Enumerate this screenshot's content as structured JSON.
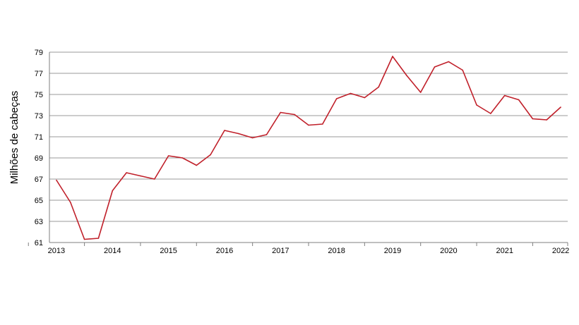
{
  "chart_data": {
    "type": "line",
    "title": "",
    "xlabel": "",
    "ylabel": "Milhões de cabeças",
    "ylim": [
      61,
      79
    ],
    "yticks": [
      61,
      63,
      65,
      67,
      69,
      71,
      73,
      75,
      77,
      79
    ],
    "xticks": [
      "2013",
      "2014",
      "2015",
      "2016",
      "2017",
      "2018",
      "2019",
      "2020",
      "2021",
      "2022"
    ],
    "grid": true,
    "legend": "none",
    "series": [
      {
        "color": "#c0202a",
        "x": [
          2013.0,
          2013.25,
          2013.5,
          2013.75,
          2014.0,
          2014.25,
          2014.5,
          2014.75,
          2015.0,
          2015.25,
          2015.5,
          2015.75,
          2016.0,
          2016.25,
          2016.5,
          2016.75,
          2017.0,
          2017.25,
          2017.5,
          2017.75,
          2018.0,
          2018.25,
          2018.5,
          2018.75,
          2019.0,
          2019.25,
          2019.5,
          2019.75,
          2020.0,
          2020.25,
          2020.5,
          2020.75,
          2021.0,
          2021.25,
          2021.5,
          2021.75,
          2022.0
        ],
        "values": [
          66.9,
          64.8,
          61.3,
          61.4,
          65.9,
          67.6,
          67.3,
          67.0,
          69.2,
          69.0,
          68.3,
          69.3,
          71.6,
          71.3,
          70.9,
          71.2,
          73.3,
          73.1,
          72.1,
          72.2,
          74.6,
          75.1,
          74.7,
          75.7,
          78.6,
          76.8,
          75.2,
          77.6,
          78.1,
          77.3,
          74.0,
          73.2,
          74.9,
          74.5,
          72.7,
          72.6,
          73.8
        ]
      }
    ]
  }
}
